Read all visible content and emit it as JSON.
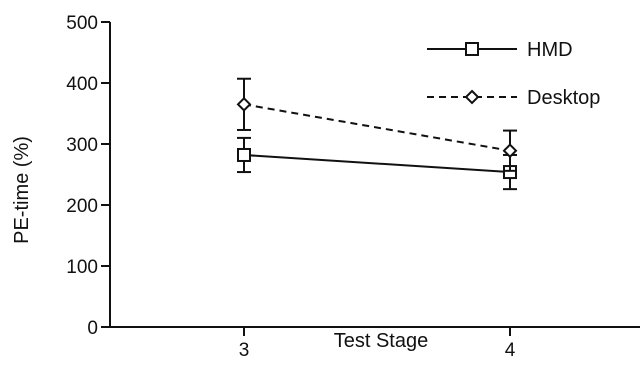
{
  "chart_data": {
    "type": "line",
    "title": "",
    "xlabel": "Test Stage",
    "ylabel": "PE-time (%)",
    "categories": [
      "3",
      "4"
    ],
    "ylim": [
      0,
      500
    ],
    "yticks": [
      "0",
      "100",
      "200",
      "300",
      "400",
      "500"
    ],
    "grid": false,
    "legend_position": "top-right",
    "series": [
      {
        "name": "HMD",
        "marker": "square",
        "line_style": "solid",
        "values": [
          282,
          254
        ],
        "error": [
          28,
          28
        ]
      },
      {
        "name": "Desktop",
        "marker": "diamond",
        "line_style": "dashed",
        "values": [
          365,
          289
        ],
        "error": [
          42,
          33
        ]
      }
    ]
  }
}
